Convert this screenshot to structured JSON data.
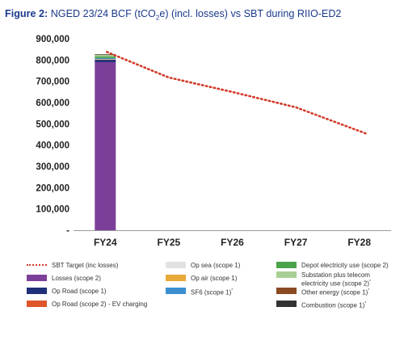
{
  "title": {
    "fig": "Figure 2:",
    "text_a": "NGED 23/24 BCF (tCO",
    "text_sub": "2",
    "text_b": "e) (incl. losses) vs SBT during RIIO-ED2"
  },
  "chart_data": {
    "type": "bar",
    "categories": [
      "FY24",
      "FY25",
      "FY26",
      "FY27",
      "FY28"
    ],
    "ylim": [
      0,
      900000
    ],
    "y_ticks": [
      0,
      100000,
      200000,
      300000,
      400000,
      500000,
      600000,
      700000,
      800000,
      900000
    ],
    "y_tick_labels": [
      "-",
      "100,000",
      "200,000",
      "300,000",
      "400,000",
      "500,000",
      "600,000",
      "700,000",
      "800,000",
      "900,000"
    ],
    "stacked_series": [
      {
        "name": "Losses (scope 2)",
        "color": "#7b3f99",
        "values": [
          790000,
          0,
          0,
          0,
          0
        ]
      },
      {
        "name": "Op Road (scope 1)",
        "color": "#1f2f7a",
        "values": [
          12000,
          0,
          0,
          0,
          0
        ]
      },
      {
        "name": "Op Road (scope 2) - EV charging",
        "color": "#e0542a",
        "values": [
          1000,
          0,
          0,
          0,
          0
        ]
      },
      {
        "name": "Op sea (scope 1)",
        "color": "#e2e2e2",
        "values": [
          500,
          0,
          0,
          0,
          0
        ]
      },
      {
        "name": "Op air (scope 1)",
        "color": "#e8a83a",
        "values": [
          1000,
          0,
          0,
          0,
          0
        ]
      },
      {
        "name": "SF6 (scope 1)",
        "color": "#3b8fd0",
        "values": [
          5000,
          0,
          0,
          0,
          0
        ]
      },
      {
        "name": "Depot electricity use (scope 2)",
        "color": "#4aa34a",
        "values": [
          7000,
          0,
          0,
          0,
          0
        ]
      },
      {
        "name": "Substation plus telecom electricity use (scope 2)",
        "color": "#a9cf95",
        "values": [
          8000,
          0,
          0,
          0,
          0
        ]
      },
      {
        "name": "Other energy (scope 1)",
        "color": "#8a4a22",
        "values": [
          1500,
          0,
          0,
          0,
          0
        ]
      },
      {
        "name": "Combustion (scope 1)",
        "color": "#333333",
        "values": [
          1000,
          0,
          0,
          0,
          0
        ]
      }
    ],
    "line_series": {
      "name": "SBT Target (inc losses)",
      "color": "#d23a2a",
      "style": "dotted",
      "x_positions": [
        0,
        1,
        2,
        3,
        4
      ],
      "values": [
        838000,
        718000,
        650000,
        578000,
        455000
      ]
    },
    "grid": false,
    "legend_position": "bottom"
  },
  "legend": [
    {
      "key": "sbt",
      "label": "SBT Target (inc losses)",
      "type": "line",
      "color": "#d23a2a"
    },
    {
      "key": "opsea",
      "label": "Op sea (scope 1)",
      "type": "box",
      "color": "#e2e2e2"
    },
    {
      "key": "depot",
      "label": "Depot electricity use (scope 2)",
      "type": "box",
      "color": "#4aa34a"
    },
    {
      "key": "losses",
      "label": "Losses (scope 2)",
      "type": "box",
      "color": "#7b3f99"
    },
    {
      "key": "opair",
      "label": "Op air (scope 1)",
      "type": "box",
      "color": "#e8a83a"
    },
    {
      "key": "substation",
      "label": "Substation plus telecom electricity use (scope 2)",
      "sup": "*",
      "type": "box",
      "color": "#a9cf95"
    },
    {
      "key": "oproad1",
      "label": "Op Road (scope 1)",
      "type": "box",
      "color": "#1f2f7a"
    },
    {
      "key": "sf6",
      "label": "SF6 (scope 1)",
      "sup": "*",
      "type": "box",
      "color": "#3b8fd0"
    },
    {
      "key": "other",
      "label": "Other energy (scope 1)",
      "sup": "*",
      "type": "box",
      "color": "#8a4a22"
    },
    {
      "key": "oproad2",
      "label": "Op Road (scope 2) - EV charging",
      "type": "box",
      "color": "#e0542a"
    },
    {
      "key": "combustion",
      "label": "Combustion (scope 1)",
      "sup": "*",
      "type": "box",
      "color": "#333333"
    }
  ]
}
